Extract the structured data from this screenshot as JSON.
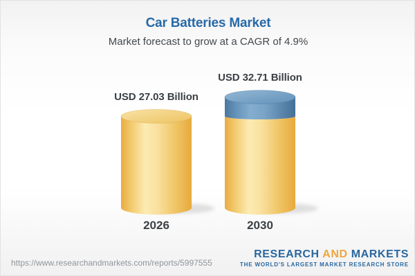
{
  "header": {
    "title": "Car Batteries Market",
    "subtitle": "Market forecast to grow at a CAGR of 4.9%"
  },
  "chart_data": {
    "type": "bar",
    "variant": "3d-cylinder",
    "title": "Car Batteries Market",
    "subtitle": "Market forecast to grow at a CAGR of 4.9%",
    "cagr": "4.9%",
    "unit": "USD Billion",
    "categories": [
      "2026",
      "2030"
    ],
    "values": [
      27.03,
      32.71
    ],
    "value_labels": [
      "USD 27.03 Billion",
      "USD 32.71 Billion"
    ],
    "growth_cap": {
      "applies_to": "2030",
      "from_value": 27.03,
      "to_value": 32.71
    },
    "legend": "none",
    "grid": false,
    "colors": {
      "bar_body": "#f6d88e",
      "bar_body_edge": "#e8ac41",
      "bar_top": "#f2d083",
      "cap_body": "#6f9cc2",
      "cap_body_edge": "#4a779e",
      "cap_top": "#7ea8c9",
      "label_text": "#3b4045"
    }
  },
  "footer": {
    "url": "https://www.researchandmarkets.com/reports/5997555",
    "logo": {
      "word1": "RESEARCH",
      "word2": "AND",
      "word3": "MARKETS",
      "tagline": "THE WORLD'S LARGEST MARKET RESEARCH STORE",
      "blue": "#29679f",
      "orange": "#efa63b"
    }
  },
  "colors": {
    "title_blue": "#2769a8",
    "subtitle_gray": "#42474c",
    "url_gray": "#8f9499",
    "background_top": "#f2f2f3",
    "background_mid": "#ffffff"
  }
}
